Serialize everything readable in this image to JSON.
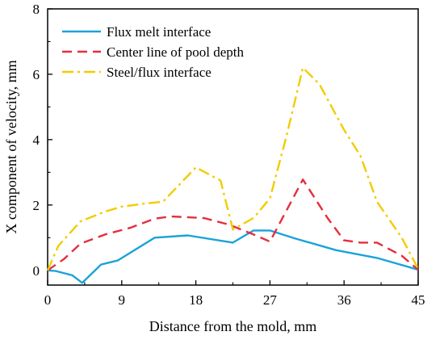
{
  "chart_data": {
    "type": "line",
    "title": "",
    "xlabel": "Distance from the mold, mm",
    "ylabel": "X component of velocity, mm",
    "xlim": [
      0,
      45
    ],
    "ylim": [
      -0.45,
      8
    ],
    "xticks": [
      0,
      9,
      18,
      27,
      36,
      45
    ],
    "yticks": [
      0,
      2,
      4,
      6,
      8
    ],
    "grid": false,
    "legend_position": "top-left",
    "series": [
      {
        "name": "Flux melt interface",
        "color": "#1aa3d9",
        "style": "solid",
        "x": [
          0,
          1,
          3,
          4.2,
          6.5,
          8.5,
          13,
          17,
          22.5,
          25,
          27,
          30,
          35,
          40,
          45
        ],
        "y": [
          0.0,
          -0.02,
          -0.15,
          -0.38,
          0.18,
          0.3,
          1.0,
          1.07,
          0.85,
          1.22,
          1.22,
          0.98,
          0.62,
          0.38,
          0.02
        ]
      },
      {
        "name": "Center line of pool depth",
        "color": "#e62e3c",
        "style": "dashed",
        "x": [
          0,
          2,
          4,
          7,
          10,
          13,
          15,
          19,
          22,
          25,
          27,
          31,
          34,
          36,
          38,
          40,
          43,
          45
        ],
        "y": [
          0.0,
          0.35,
          0.82,
          1.1,
          1.3,
          1.58,
          1.65,
          1.6,
          1.4,
          1.1,
          0.88,
          2.78,
          1.6,
          0.92,
          0.85,
          0.85,
          0.45,
          0.02
        ]
      },
      {
        "name": "Steel/flux interface",
        "color": "#f2cc00",
        "style": "dashdot",
        "x": [
          0,
          1.3,
          4,
          7,
          9,
          12,
          14,
          18,
          21,
          22.5,
          25,
          27,
          29,
          31,
          33,
          36,
          38,
          40,
          43,
          45
        ],
        "y": [
          0.0,
          0.75,
          1.5,
          1.8,
          1.95,
          2.05,
          2.1,
          3.15,
          2.75,
          1.25,
          1.6,
          2.2,
          4.1,
          6.2,
          5.7,
          4.3,
          3.5,
          2.1,
          1.0,
          0.05
        ]
      }
    ]
  }
}
